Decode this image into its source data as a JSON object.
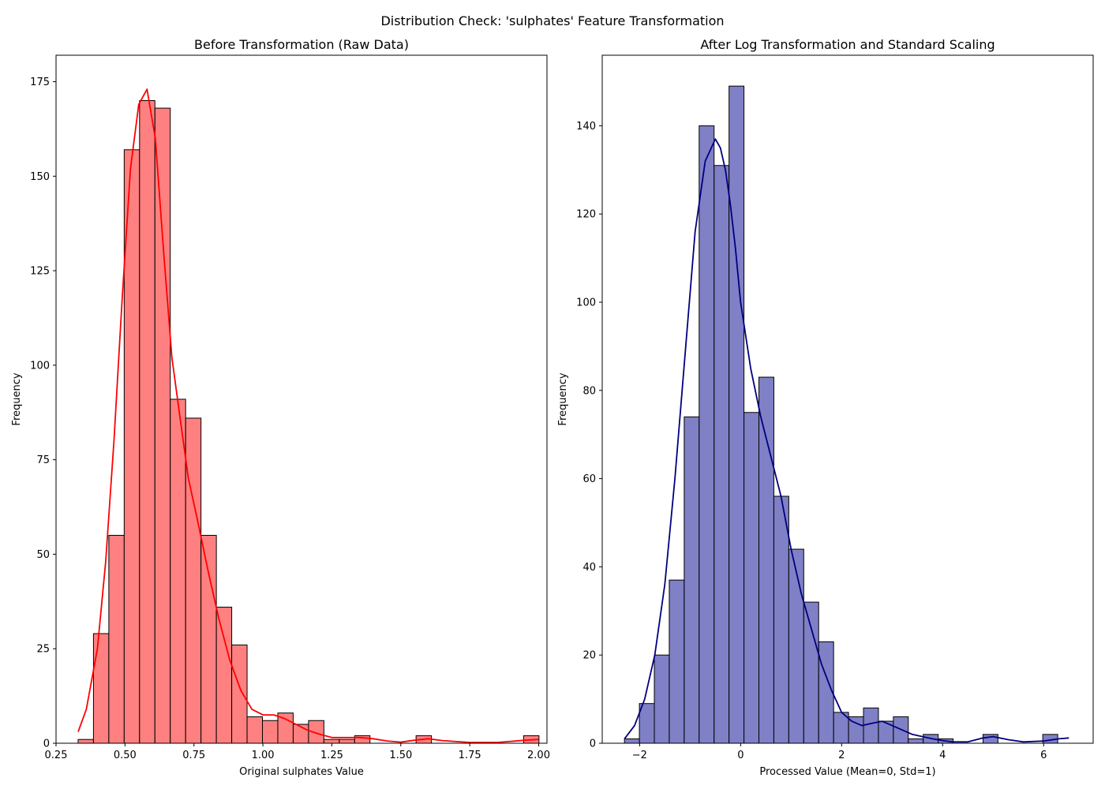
{
  "figure": {
    "suptitle": "Distribution Check: 'sulphates' Feature Transformation"
  },
  "colors": {
    "left_bar": "#ff8080",
    "left_kde": "#ff0000",
    "right_bar": "#7f80c6",
    "right_kde": "#000080",
    "edge": "#000000"
  },
  "chart_data": [
    {
      "type": "bar",
      "title": "Before Transformation (Raw Data)",
      "xlabel": "Original sulphates Value",
      "ylabel": "Frequency",
      "xlim": [
        0.25,
        2.03
      ],
      "ylim": [
        0,
        182
      ],
      "xticks": [
        0.25,
        0.5,
        0.75,
        1.0,
        1.25,
        1.5,
        1.75,
        2.0
      ],
      "xtick_labels": [
        "0.25",
        "0.50",
        "0.75",
        "1.00",
        "1.25",
        "1.50",
        "1.75",
        "2.00"
      ],
      "yticks": [
        0,
        25,
        50,
        75,
        100,
        125,
        150,
        175
      ],
      "ytick_labels": [
        "0",
        "25",
        "50",
        "75",
        "100",
        "125",
        "150",
        "175"
      ],
      "bin_start": 0.33,
      "bin_width": 0.0557,
      "values": [
        1,
        29,
        55,
        157,
        170,
        168,
        91,
        86,
        55,
        36,
        26,
        7,
        6,
        8,
        5,
        6,
        1,
        1,
        2,
        0,
        0,
        0,
        2,
        0,
        0,
        0,
        0,
        0,
        0,
        2
      ],
      "kde": {
        "x": [
          0.33,
          0.36,
          0.4,
          0.43,
          0.46,
          0.49,
          0.52,
          0.55,
          0.58,
          0.61,
          0.64,
          0.67,
          0.7,
          0.73,
          0.76,
          0.8,
          0.84,
          0.88,
          0.92,
          0.96,
          1.0,
          1.04,
          1.08,
          1.12,
          1.16,
          1.2,
          1.25,
          1.3,
          1.35,
          1.4,
          1.45,
          1.5,
          1.55,
          1.6,
          1.65,
          1.75,
          1.85,
          1.95,
          2.0
        ],
        "y": [
          3,
          9,
          25,
          48,
          80,
          118,
          152,
          169,
          173,
          160,
          130,
          102,
          86,
          70,
          60,
          46,
          33,
          22,
          14,
          9,
          7.5,
          7.5,
          6.5,
          5,
          3.5,
          2.5,
          1.5,
          1.5,
          1.5,
          1.2,
          0.6,
          0.3,
          0.8,
          1.2,
          0.7,
          0.2,
          0.2,
          0.8,
          1
        ]
      }
    },
    {
      "type": "bar",
      "title": "After Log Transformation and Standard Scaling",
      "xlabel": "Processed Value (Mean=0, Std=1)",
      "ylabel": "Frequency",
      "xlim": [
        -2.74,
        6.98
      ],
      "ylim": [
        0,
        156
      ],
      "xticks": [
        -2,
        0,
        2,
        4,
        6
      ],
      "xtick_labels": [
        "−2",
        "0",
        "2",
        "4",
        "6"
      ],
      "yticks": [
        0,
        20,
        40,
        60,
        80,
        100,
        120,
        140
      ],
      "ytick_labels": [
        "0",
        "20",
        "40",
        "60",
        "80",
        "100",
        "120",
        "140"
      ],
      "bin_start": -2.3,
      "bin_width": 0.2958,
      "values": [
        1,
        9,
        20,
        37,
        74,
        140,
        131,
        149,
        75,
        83,
        56,
        44,
        32,
        23,
        7,
        6,
        8,
        5,
        6,
        1,
        2,
        1,
        0,
        0,
        2,
        0,
        0,
        0,
        2
      ],
      "kde": {
        "x": [
          -2.3,
          -2.1,
          -1.9,
          -1.7,
          -1.5,
          -1.3,
          -1.1,
          -0.9,
          -0.7,
          -0.5,
          -0.4,
          -0.3,
          -0.2,
          -0.1,
          0.0,
          0.2,
          0.4,
          0.6,
          0.8,
          1.0,
          1.2,
          1.4,
          1.6,
          1.8,
          2.0,
          2.2,
          2.4,
          2.6,
          2.8,
          3.0,
          3.2,
          3.4,
          3.6,
          3.8,
          4.0,
          4.2,
          4.5,
          4.8,
          5.0,
          5.3,
          5.6,
          6.0,
          6.3,
          6.5
        ],
        "y": [
          1,
          4,
          10,
          20,
          36,
          60,
          88,
          116,
          132,
          137,
          135,
          130,
          122,
          112,
          100,
          85,
          74,
          65,
          56,
          44,
          34,
          26,
          18,
          12,
          7,
          5,
          4,
          4.5,
          5,
          4,
          3,
          2,
          1.5,
          1,
          0.6,
          0.3,
          0.3,
          1.2,
          1.5,
          0.8,
          0.3,
          0.5,
          1,
          1.2
        ]
      }
    }
  ]
}
